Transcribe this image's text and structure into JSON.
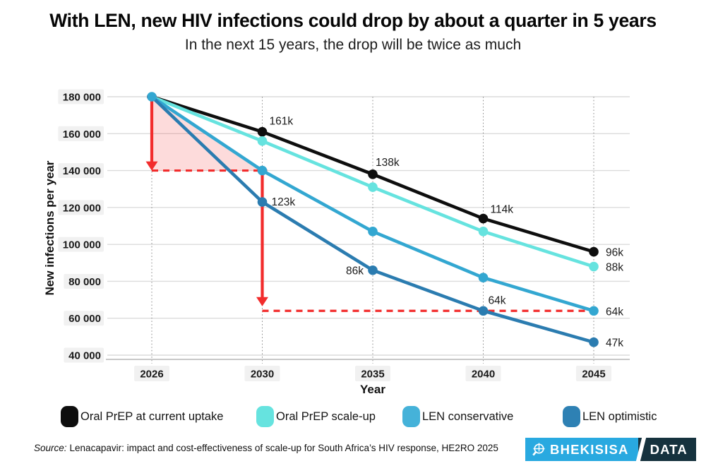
{
  "header": {
    "title": "With LEN, new HIV infections could drop by about a quarter in 5 years",
    "subtitle": "In the next 15 years, the drop will be twice as much"
  },
  "chart_data": {
    "type": "line",
    "title": "With LEN, new HIV infections could drop by about a quarter in 5 years",
    "xlabel": "Year",
    "ylabel": "New infections per year",
    "x": [
      "2026",
      "2030",
      "2035",
      "2040",
      "2045"
    ],
    "ylim": [
      40000,
      180000
    ],
    "grid": true,
    "y_ticks": [
      180000,
      160000,
      140000,
      120000,
      100000,
      80000,
      60000,
      40000
    ],
    "y_tick_labels": [
      "180 000",
      "160 000",
      "140 000",
      "120 000",
      "100 000",
      "80 000",
      "60 000",
      "40 000"
    ],
    "start_dot_series": 2,
    "series": [
      {
        "name": "Oral PrEP at current uptake",
        "color": "#0E0E0E",
        "values": [
          180000,
          161000,
          138000,
          114000,
          96000
        ],
        "point_labels": [
          {
            "i": 1,
            "text": "161k",
            "dx": 10,
            "dy": -10,
            "anchor": "start"
          },
          {
            "i": 2,
            "text": "138k",
            "dx": 4,
            "dy": -12,
            "anchor": "start"
          },
          {
            "i": 3,
            "text": "114k",
            "dx": 10,
            "dy": -8,
            "anchor": "start"
          },
          {
            "i": 4,
            "text": "96k",
            "dx": 17,
            "dy": 6,
            "anchor": "start"
          }
        ]
      },
      {
        "name": "Oral PrEP scale-up",
        "color": "#66E3DF",
        "values": [
          180000,
          156000,
          131000,
          107000,
          88000
        ],
        "point_labels": [
          {
            "i": 4,
            "text": "88k",
            "dx": 17,
            "dy": 6,
            "anchor": "start"
          }
        ]
      },
      {
        "name": "LEN conservative",
        "color": "#33A7D1",
        "values": [
          180000,
          140000,
          107000,
          82000,
          64000
        ],
        "point_labels": [
          {
            "i": 4,
            "text": "64k",
            "dx": 17,
            "dy": 6,
            "anchor": "start"
          }
        ]
      },
      {
        "name": "LEN optimistic",
        "color": "#2B7CB0",
        "values": [
          180000,
          123000,
          86000,
          64000,
          47000
        ],
        "point_labels": [
          {
            "i": 1,
            "text": "123k",
            "dx": 13,
            "dy": 5,
            "anchor": "start"
          },
          {
            "i": 2,
            "text": "86k",
            "dx": -13,
            "dy": 6,
            "anchor": "end"
          },
          {
            "i": 3,
            "text": "64k",
            "dx": 7,
            "dy": -10,
            "anchor": "start"
          },
          {
            "i": 4,
            "text": "47k",
            "dx": 17,
            "dy": 6,
            "anchor": "start"
          }
        ]
      }
    ],
    "annotations": {
      "color": "#F22C2C",
      "shade_opacity": 0.17,
      "shaded_triangle": [
        [
          0,
          180000
        ],
        [
          1,
          140000
        ],
        [
          0,
          140000
        ]
      ],
      "arrows": [
        {
          "x": 0,
          "from": 180000,
          "to": 140000
        },
        {
          "x": 1,
          "from": 140000,
          "to": 66500
        }
      ],
      "dashed_lines": [
        {
          "y": 140000,
          "from_x": 0,
          "to_x": 1
        },
        {
          "y": 64000,
          "from_x": 1,
          "to_x": 4
        }
      ]
    }
  },
  "legend": {
    "items": [
      {
        "label": "Oral PrEP at current uptake",
        "color": "#0E0E0E"
      },
      {
        "label": "Oral PrEP scale-up",
        "color": "#66E3DF"
      },
      {
        "label": "LEN conservative",
        "color": "#45B2D9"
      },
      {
        "label": "LEN optimistic",
        "color": "#2E81B4"
      }
    ]
  },
  "footer": {
    "source_label": "Source:",
    "source_text": "Lenacapavir: impact and cost-effectiveness of scale-up for South Africa’s HIV response, HE2RO 2025",
    "logo": {
      "primary": "BHEKISISA",
      "secondary": "DATA",
      "blue": "#29A9E0",
      "dark": "#16323E"
    }
  }
}
